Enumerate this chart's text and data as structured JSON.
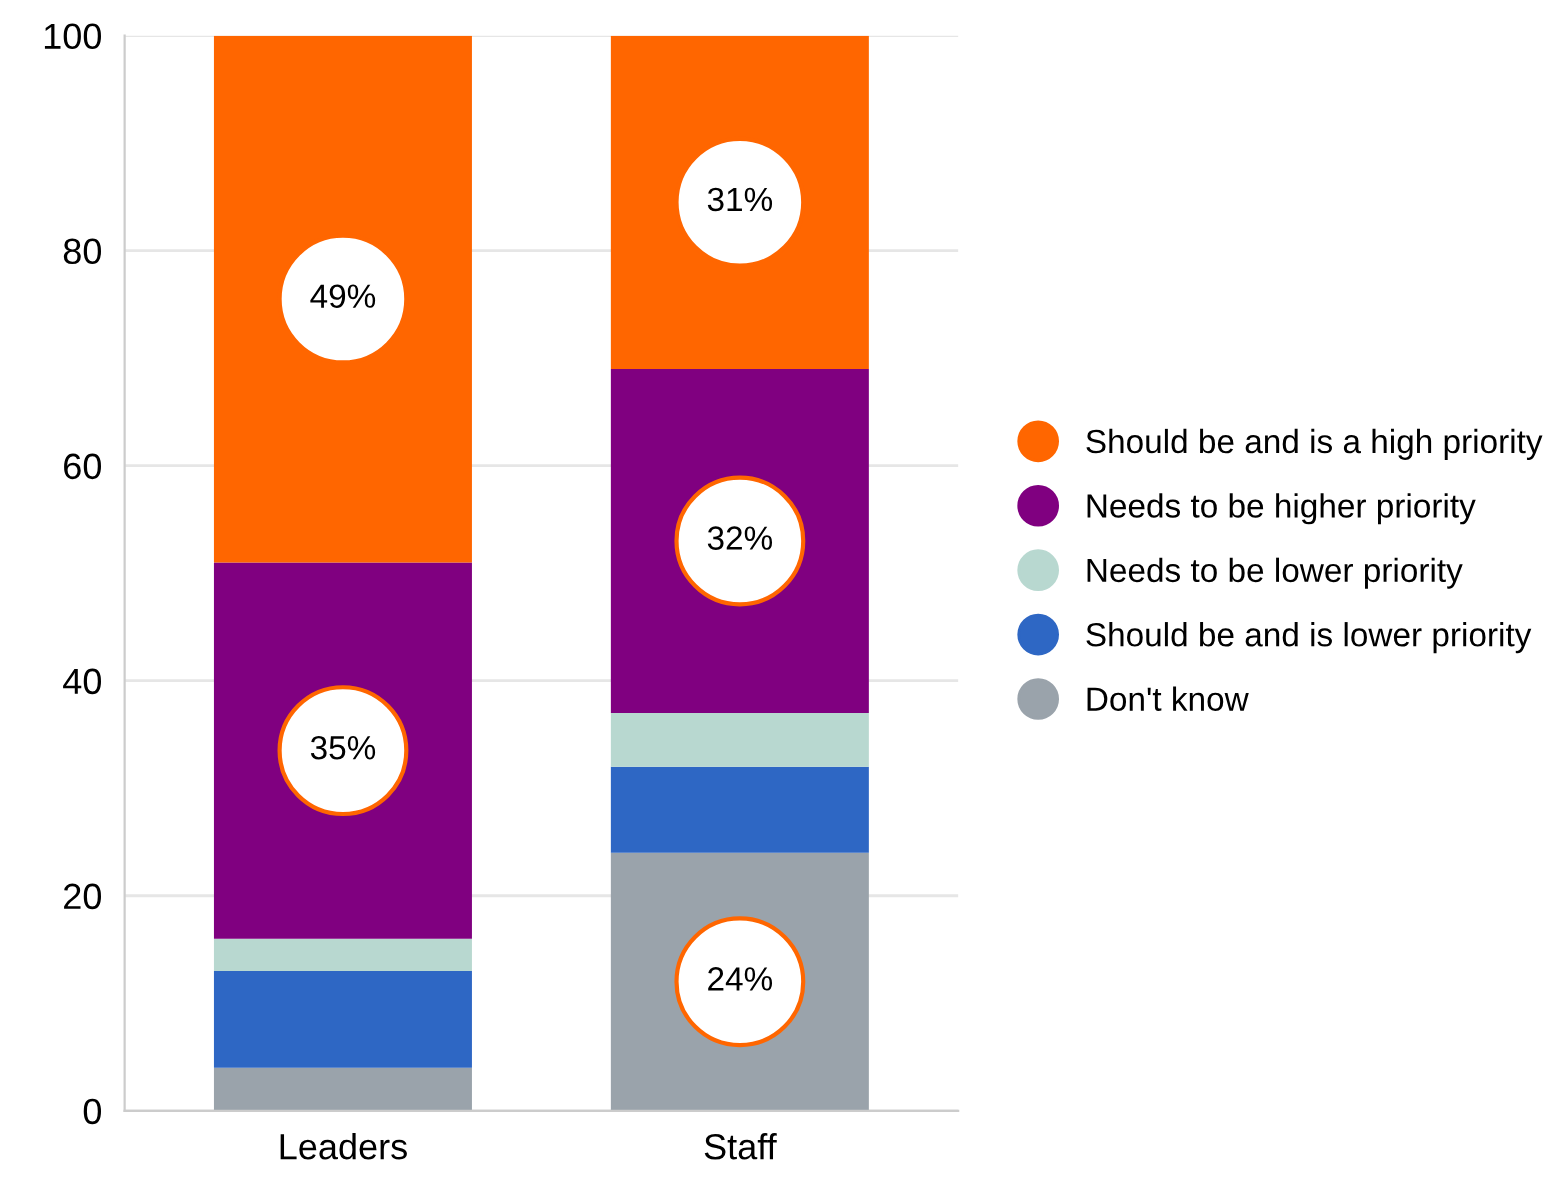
{
  "chart_data": {
    "type": "bar",
    "stacked": true,
    "categories": [
      "Leaders",
      "Staff"
    ],
    "series": [
      {
        "name": "Don't know",
        "color": "#9aa3ab",
        "values": [
          4,
          24
        ],
        "value_labels": [
          null,
          "24%"
        ]
      },
      {
        "name": "Should be and is lower priority",
        "color": "#2e67c4",
        "values": [
          9,
          8
        ],
        "value_labels": [
          null,
          null
        ]
      },
      {
        "name": "Needs to be lower priority",
        "color": "#b8d8d0",
        "values": [
          3,
          5
        ],
        "value_labels": [
          null,
          null
        ]
      },
      {
        "name": "Needs to be higher priority",
        "color": "#800080",
        "values": [
          35,
          32
        ],
        "value_labels": [
          "35%",
          "32%"
        ]
      },
      {
        "name": "Should be and is a high priority",
        "color": "#ff6600",
        "values": [
          49,
          31
        ],
        "value_labels": [
          "49%",
          "31%"
        ]
      }
    ],
    "ylim": [
      0,
      100
    ],
    "yticks": [
      0,
      20,
      40,
      60,
      80,
      100
    ],
    "grid": "y",
    "legend": "right"
  }
}
